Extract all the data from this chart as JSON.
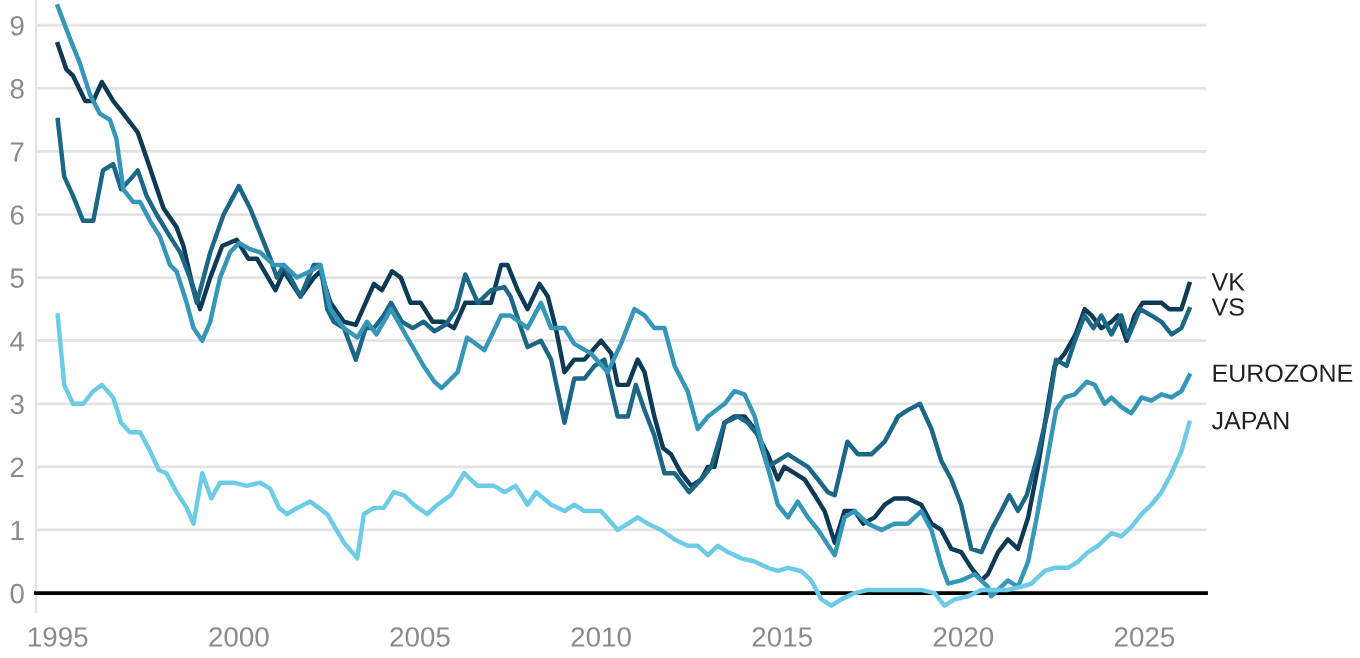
{
  "chart_data": {
    "type": "line",
    "xlim": [
      1994.4,
      2026.7
    ],
    "xticks": [
      1995,
      2000,
      2005,
      2010,
      2015,
      2020,
      2025
    ],
    "ylim": [
      -0.3,
      9.4
    ],
    "yticks": [
      0,
      1,
      2,
      3,
      4,
      5,
      6,
      7,
      8,
      9
    ],
    "grid": "y",
    "legend": false,
    "marker": "none",
    "line_style": "solid",
    "series": [
      {
        "name": "VK",
        "color": "#0d3b56",
        "x": [
          1995.0,
          1995.24,
          1995.42,
          1995.76,
          1995.98,
          1996.22,
          1996.53,
          1996.81,
          1997.21,
          1997.45,
          1997.92,
          1998.28,
          1998.47,
          1998.71,
          1998.93,
          1999.21,
          1999.54,
          1999.94,
          2000.26,
          2000.5,
          2001.01,
          2001.24,
          2001.7,
          2002.07,
          2002.25,
          2002.53,
          2002.9,
          2003.23,
          2003.73,
          2003.95,
          2004.23,
          2004.47,
          2004.74,
          2005.02,
          2005.35,
          2005.66,
          2005.94,
          2006.25,
          2006.68,
          2006.96,
          2007.24,
          2007.42,
          2007.7,
          2007.97,
          2008.3,
          2008.53,
          2008.75,
          2008.99,
          2009.26,
          2009.54,
          2010.0,
          2010.28,
          2010.46,
          2010.74,
          2011.01,
          2011.2,
          2011.47,
          2011.71,
          2011.93,
          2012.21,
          2012.49,
          2012.76,
          2012.95,
          2013.13,
          2013.41,
          2013.68,
          2013.96,
          2014.24,
          2014.6,
          2014.88,
          2015.06,
          2015.34,
          2015.62,
          2015.9,
          2016.17,
          2016.45,
          2016.72,
          2017.0,
          2017.24,
          2017.55,
          2017.83,
          2018.1,
          2018.47,
          2018.84,
          2019.12,
          2019.39,
          2019.67,
          2019.94,
          2020.22,
          2020.5,
          2020.68,
          2020.96,
          2021.23,
          2021.51,
          2021.79,
          2022.06,
          2022.34,
          2022.52,
          2022.8,
          2023.1,
          2023.35,
          2023.54,
          2023.81,
          2024.09,
          2024.27,
          2024.51,
          2024.73,
          2024.95,
          2025.19,
          2025.47,
          2025.69,
          2026.02,
          2026.24
        ],
        "values": [
          8.7,
          8.3,
          8.2,
          7.8,
          7.8,
          8.1,
          7.8,
          7.6,
          7.3,
          6.9,
          6.1,
          5.8,
          5.5,
          4.9,
          4.5,
          5.0,
          5.5,
          5.6,
          5.3,
          5.3,
          4.8,
          5.1,
          4.7,
          5.0,
          5.1,
          4.6,
          4.3,
          4.25,
          4.9,
          4.8,
          5.1,
          5.0,
          4.6,
          4.6,
          4.3,
          4.3,
          4.2,
          4.6,
          4.6,
          4.6,
          5.2,
          5.2,
          4.8,
          4.5,
          4.9,
          4.7,
          4.2,
          3.5,
          3.7,
          3.7,
          4.0,
          3.8,
          3.3,
          3.3,
          3.7,
          3.5,
          2.8,
          2.3,
          2.2,
          1.9,
          1.7,
          1.8,
          2.0,
          2.0,
          2.7,
          2.8,
          2.8,
          2.6,
          2.2,
          1.8,
          2.0,
          1.9,
          1.8,
          1.55,
          1.3,
          0.8,
          1.3,
          1.3,
          1.1,
          1.2,
          1.4,
          1.5,
          1.5,
          1.4,
          1.1,
          1.0,
          0.7,
          0.65,
          0.4,
          0.2,
          0.3,
          0.65,
          0.85,
          0.7,
          1.2,
          2.0,
          3.0,
          3.6,
          3.8,
          4.1,
          4.5,
          4.4,
          4.2,
          4.3,
          4.4,
          4.0,
          4.4,
          4.6,
          4.6,
          4.6,
          4.5,
          4.5,
          4.9
        ]
      },
      {
        "name": "VS",
        "color": "#1d6786",
        "x": [
          1995.0,
          1995.18,
          1995.42,
          1995.7,
          1995.98,
          1996.25,
          1996.53,
          1996.75,
          1996.99,
          1997.21,
          1997.45,
          1997.73,
          1998.1,
          1998.38,
          1998.65,
          1998.84,
          1999.21,
          1999.58,
          2000.0,
          2000.31,
          2000.59,
          2000.87,
          2001.05,
          2001.24,
          2001.7,
          2002.07,
          2002.25,
          2002.44,
          2002.62,
          2002.9,
          2003.23,
          2003.5,
          2003.73,
          2004.0,
          2004.2,
          2004.5,
          2004.8,
          2005.1,
          2005.4,
          2005.7,
          2006.0,
          2006.25,
          2006.6,
          2006.96,
          2007.33,
          2007.5,
          2007.79,
          2007.97,
          2008.34,
          2008.62,
          2008.99,
          2009.26,
          2009.54,
          2009.82,
          2010.09,
          2010.46,
          2010.74,
          2010.96,
          2011.2,
          2011.47,
          2011.75,
          2012.03,
          2012.43,
          2012.76,
          2013.04,
          2013.41,
          2013.77,
          2014.05,
          2014.33,
          2014.6,
          2014.88,
          2015.16,
          2015.43,
          2015.71,
          2015.99,
          2016.26,
          2016.45,
          2016.8,
          2017.09,
          2017.46,
          2017.83,
          2018.2,
          2018.47,
          2018.8,
          2019.12,
          2019.39,
          2019.67,
          2019.94,
          2020.22,
          2020.5,
          2020.77,
          2021.05,
          2021.27,
          2021.51,
          2021.75,
          2022.06,
          2022.34,
          2022.56,
          2022.85,
          2023.08,
          2023.35,
          2023.59,
          2023.81,
          2024.09,
          2024.36,
          2024.55,
          2024.88,
          2025.19,
          2025.47,
          2025.75,
          2026.02,
          2026.24
        ],
        "values": [
          7.5,
          6.6,
          6.3,
          5.9,
          5.9,
          6.7,
          6.8,
          6.4,
          6.55,
          6.7,
          6.3,
          6.0,
          5.65,
          5.4,
          5.0,
          4.6,
          5.4,
          6.0,
          6.45,
          6.1,
          5.7,
          5.3,
          5.0,
          5.2,
          4.7,
          5.2,
          5.2,
          4.5,
          4.3,
          4.2,
          3.7,
          4.2,
          4.2,
          4.4,
          4.6,
          4.3,
          4.2,
          4.3,
          4.15,
          4.25,
          4.5,
          5.05,
          4.6,
          4.8,
          4.85,
          4.7,
          4.2,
          3.9,
          4.0,
          3.7,
          2.7,
          3.4,
          3.4,
          3.6,
          3.7,
          2.8,
          2.8,
          3.3,
          2.9,
          2.5,
          1.9,
          1.9,
          1.6,
          1.8,
          2.0,
          2.7,
          2.8,
          2.7,
          2.5,
          2.0,
          2.1,
          2.2,
          2.1,
          2.0,
          1.8,
          1.6,
          1.55,
          2.4,
          2.2,
          2.2,
          2.4,
          2.8,
          2.9,
          3.0,
          2.6,
          2.1,
          1.8,
          1.4,
          0.7,
          0.65,
          1.0,
          1.3,
          1.55,
          1.3,
          1.55,
          2.2,
          2.9,
          3.7,
          3.6,
          4.0,
          4.4,
          4.2,
          4.4,
          4.1,
          4.4,
          4.05,
          4.5,
          4.4,
          4.3,
          4.1,
          4.2,
          4.5
        ]
      },
      {
        "name": "EUROZONE",
        "color": "#3596b8",
        "x": [
          1995.0,
          1995.33,
          1995.61,
          1995.89,
          1996.16,
          1996.44,
          1996.62,
          1996.81,
          1997.08,
          1997.27,
          1997.55,
          1997.82,
          1998.1,
          1998.28,
          1998.56,
          1998.75,
          1998.99,
          1999.21,
          1999.48,
          1999.76,
          2000.0,
          2000.31,
          2000.59,
          2000.96,
          2001.24,
          2001.61,
          2001.97,
          2002.25,
          2002.53,
          2002.9,
          2003.27,
          2003.54,
          2003.8,
          2004.2,
          2004.5,
          2004.8,
          2005.1,
          2005.4,
          2005.6,
          2006.04,
          2006.3,
          2006.78,
          2007.24,
          2007.5,
          2007.97,
          2008.34,
          2008.62,
          2008.99,
          2009.26,
          2009.72,
          2010.18,
          2010.55,
          2010.92,
          2011.2,
          2011.47,
          2011.75,
          2012.03,
          2012.39,
          2012.67,
          2012.95,
          2013.41,
          2013.68,
          2013.96,
          2014.24,
          2014.6,
          2014.88,
          2015.16,
          2015.43,
          2015.71,
          2015.99,
          2016.45,
          2016.72,
          2017.0,
          2017.37,
          2017.74,
          2018.1,
          2018.47,
          2018.84,
          2019.12,
          2019.39,
          2019.58,
          2019.94,
          2020.31,
          2020.68,
          2020.77,
          2020.96,
          2021.23,
          2021.51,
          2021.79,
          2022.06,
          2022.34,
          2022.56,
          2022.8,
          2023.08,
          2023.41,
          2023.63,
          2023.9,
          2024.09,
          2024.36,
          2024.64,
          2024.92,
          2025.19,
          2025.47,
          2025.75,
          2026.02,
          2026.24
        ],
        "values": [
          9.3,
          8.8,
          8.4,
          7.9,
          7.6,
          7.5,
          7.2,
          6.4,
          6.2,
          6.2,
          5.9,
          5.65,
          5.2,
          5.1,
          4.6,
          4.2,
          4.0,
          4.3,
          5.0,
          5.4,
          5.55,
          5.45,
          5.4,
          5.2,
          5.2,
          5.0,
          5.1,
          5.2,
          4.5,
          4.2,
          4.05,
          4.3,
          4.1,
          4.5,
          4.2,
          3.9,
          3.6,
          3.35,
          3.25,
          3.5,
          4.05,
          3.85,
          4.4,
          4.4,
          4.2,
          4.6,
          4.2,
          4.2,
          3.95,
          3.8,
          3.5,
          3.95,
          4.5,
          4.4,
          4.2,
          4.2,
          3.6,
          3.2,
          2.6,
          2.8,
          3.0,
          3.2,
          3.15,
          2.8,
          2.0,
          1.4,
          1.2,
          1.45,
          1.2,
          1.0,
          0.6,
          1.2,
          1.3,
          1.1,
          1.0,
          1.1,
          1.1,
          1.3,
          1.0,
          0.45,
          0.15,
          0.2,
          0.3,
          0.1,
          -0.05,
          0.05,
          0.2,
          0.1,
          0.5,
          1.3,
          2.2,
          2.9,
          3.1,
          3.15,
          3.35,
          3.3,
          3.0,
          3.1,
          2.95,
          2.85,
          3.1,
          3.05,
          3.15,
          3.1,
          3.2,
          3.45
        ]
      },
      {
        "name": "JAPAN",
        "color": "#6ccbe6",
        "x": [
          1995.0,
          1995.18,
          1995.42,
          1995.7,
          1995.98,
          1996.22,
          1996.53,
          1996.75,
          1996.99,
          1997.27,
          1997.55,
          1997.79,
          1998.0,
          1998.28,
          1998.56,
          1998.75,
          1998.99,
          1999.24,
          1999.48,
          1999.85,
          2000.22,
          2000.59,
          2000.87,
          2001.11,
          2001.33,
          2001.61,
          2001.97,
          2002.21,
          2002.44,
          2002.9,
          2003.27,
          2003.45,
          2003.73,
          2004.0,
          2004.28,
          2004.56,
          2004.83,
          2005.2,
          2005.48,
          2005.85,
          2006.22,
          2006.59,
          2007.05,
          2007.33,
          2007.64,
          2007.97,
          2008.21,
          2008.62,
          2008.99,
          2009.26,
          2009.54,
          2010.0,
          2010.46,
          2010.74,
          2011.01,
          2011.29,
          2011.66,
          2012.03,
          2012.39,
          2012.67,
          2012.95,
          2013.22,
          2013.5,
          2013.87,
          2014.24,
          2014.6,
          2014.88,
          2015.16,
          2015.52,
          2015.8,
          2016.08,
          2016.36,
          2016.63,
          2017.0,
          2017.37,
          2017.92,
          2018.47,
          2018.84,
          2019.21,
          2019.48,
          2019.76,
          2020.13,
          2020.5,
          2020.87,
          2021.23,
          2021.6,
          2021.88,
          2022.25,
          2022.52,
          2022.89,
          2023.17,
          2023.44,
          2023.72,
          2024.09,
          2024.36,
          2024.64,
          2024.92,
          2025.19,
          2025.47,
          2025.75,
          2026.02,
          2026.24
        ],
        "values": [
          4.4,
          3.3,
          3.0,
          3.0,
          3.2,
          3.3,
          3.1,
          2.7,
          2.55,
          2.55,
          2.25,
          1.95,
          1.9,
          1.6,
          1.35,
          1.1,
          1.9,
          1.5,
          1.75,
          1.75,
          1.7,
          1.75,
          1.65,
          1.35,
          1.25,
          1.35,
          1.45,
          1.35,
          1.25,
          0.8,
          0.55,
          1.25,
          1.35,
          1.35,
          1.6,
          1.55,
          1.4,
          1.25,
          1.4,
          1.55,
          1.9,
          1.7,
          1.7,
          1.6,
          1.7,
          1.4,
          1.6,
          1.4,
          1.3,
          1.4,
          1.3,
          1.3,
          1.0,
          1.1,
          1.2,
          1.1,
          1.0,
          0.85,
          0.75,
          0.75,
          0.6,
          0.75,
          0.65,
          0.55,
          0.5,
          0.4,
          0.35,
          0.4,
          0.35,
          0.2,
          -0.1,
          -0.2,
          -0.1,
          0.0,
          0.05,
          0.05,
          0.05,
          0.05,
          0.0,
          -0.2,
          -0.1,
          -0.05,
          0.05,
          0.05,
          0.05,
          0.1,
          0.15,
          0.35,
          0.4,
          0.4,
          0.5,
          0.65,
          0.75,
          0.95,
          0.9,
          1.05,
          1.25,
          1.4,
          1.6,
          1.9,
          2.25,
          2.7
        ]
      }
    ]
  }
}
